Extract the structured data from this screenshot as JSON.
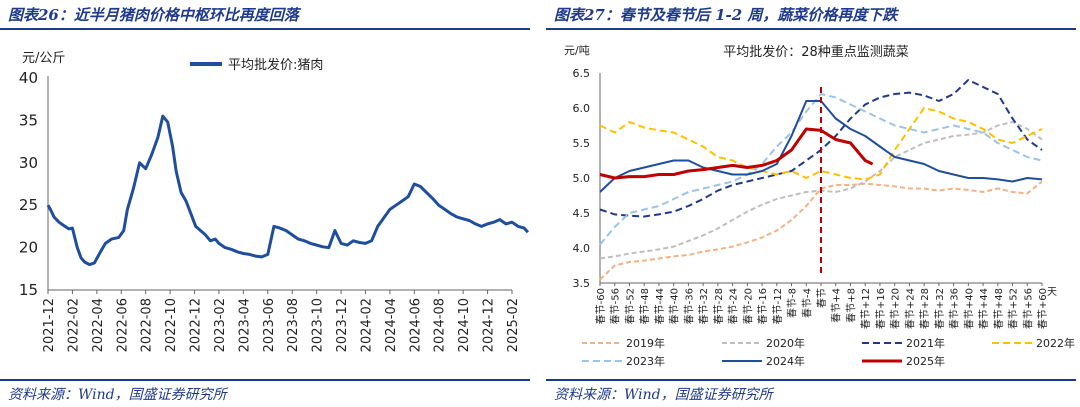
{
  "left": {
    "title": "图表26：近半月猪肉价格中枢环比再度回落",
    "source": "资料来源：Wind，国盛证券研究所"
  },
  "right": {
    "title": "图表27：春节及春节后 1-2 周，蔬菜价格再度下跌",
    "source": "资料来源：Wind，国盛证券研究所"
  },
  "chart_data": [
    {
      "type": "line",
      "ylabel": "元/公斤",
      "ylim": [
        15,
        40
      ],
      "yticks": [
        "15",
        "20",
        "25",
        "30",
        "35",
        "40"
      ],
      "xticks": [
        "2021-12",
        "2022-02",
        "2022-04",
        "2022-06",
        "2022-08",
        "2022-10",
        "2022-12",
        "2023-02",
        "2023-04",
        "2023-06",
        "2023-08",
        "2023-10",
        "2023-12",
        "2024-02",
        "2024-04",
        "2024-06",
        "2024-08",
        "2024-10",
        "2024-12",
        "2025-02"
      ],
      "legend_position": "top-center",
      "series": [
        {
          "name": "平均批发价:猪肉",
          "color": "#1f4e9c",
          "x": [
            0,
            0.2,
            0.5,
            0.9,
            1.3,
            1.7,
            2.0,
            2.4,
            2.7,
            3.0,
            3.4,
            3.8,
            4.3,
            4.7,
            5.2,
            5.8,
            6.2,
            6.5,
            7.0,
            7.5,
            8.0,
            8.5,
            9.0,
            9.4,
            9.8,
            10.2,
            10.5,
            10.9,
            11.3,
            11.7,
            12.1,
            12.5,
            12.9,
            13.3,
            13.7,
            14.0,
            14.5,
            15.0,
            15.5,
            16.0,
            16.5,
            17.0,
            17.5,
            18.0,
            18.5,
            19.0,
            19.5,
            20.0,
            20.5,
            21.0,
            21.5,
            22.0,
            22.5,
            23.0,
            23.5,
            24.0,
            24.5,
            25.0,
            25.5,
            26.0,
            26.5,
            27.0,
            27.5,
            28.0,
            28.5,
            29.0,
            29.5,
            30.0,
            30.5,
            31.0,
            31.5,
            32.0,
            32.5,
            33.0,
            33.5,
            34.0,
            34.5,
            35.0,
            35.5,
            36.0,
            36.5,
            37.0,
            37.5,
            38.0,
            38.5,
            39.0,
            39.3
          ],
          "values": [
            25.0,
            24.5,
            23.6,
            23.0,
            22.6,
            22.2,
            22.3,
            20.0,
            18.8,
            18.3,
            18.0,
            18.2,
            19.5,
            20.5,
            21.0,
            21.2,
            22.0,
            24.5,
            27.0,
            30.0,
            29.3,
            31.0,
            33.0,
            35.5,
            34.8,
            32.0,
            29.0,
            26.5,
            25.5,
            24.0,
            22.5,
            22.0,
            21.5,
            20.8,
            21.0,
            20.5,
            20.0,
            19.8,
            19.5,
            19.3,
            19.2,
            19.0,
            18.9,
            19.2,
            22.5,
            22.3,
            22.0,
            21.5,
            21.0,
            20.8,
            20.5,
            20.3,
            20.1,
            20.0,
            22.0,
            20.5,
            20.3,
            20.8,
            20.6,
            20.5,
            20.8,
            22.5,
            23.5,
            24.5,
            25.0,
            25.5,
            26.0,
            27.5,
            27.2,
            26.5,
            25.8,
            25.0,
            24.5,
            24.0,
            23.6,
            23.4,
            23.2,
            22.8,
            22.5,
            22.8,
            23.0,
            23.3,
            22.8,
            23.0,
            22.5,
            22.3,
            21.8
          ]
        }
      ]
    },
    {
      "type": "line",
      "title": "平均批发价：28种重点监测蔬菜",
      "ylabel": "元/吨",
      "ylim": [
        3.5,
        6.5
      ],
      "yticks": [
        "3.5",
        "4.0",
        "4.5",
        "5.0",
        "5.5",
        "6.0",
        "6.5"
      ],
      "xticks": [
        "春节-60",
        "春节-56",
        "春节-52",
        "春节-48",
        "春节-44",
        "春节-40",
        "春节-36",
        "春节-32",
        "春节-28",
        "春节-24",
        "春节-20",
        "春节-16",
        "春节-12",
        "春节-8",
        "春节-4",
        "春节",
        "春节+4",
        "春节+8",
        "春节+12",
        "春节+16",
        "春节+20",
        "春节+24",
        "春节+28",
        "春节+32",
        "春节+36",
        "春节+40",
        "春节+44",
        "春节+48",
        "春节+52",
        "春节+56",
        "春节+60"
      ],
      "xunit": "天",
      "legend_position": "bottom",
      "reference_line": {
        "x": 0,
        "color": "#c00000",
        "style": "dashed"
      },
      "series": [
        {
          "name": "2019年",
          "color": "#f4b183",
          "dash": "5,3",
          "x": [
            -60,
            -56,
            -52,
            -48,
            -44,
            -40,
            -36,
            -32,
            -28,
            -24,
            -20,
            -16,
            -12,
            -8,
            -4,
            0,
            4,
            8,
            12,
            16,
            20,
            24,
            28,
            32,
            36,
            40,
            44,
            48,
            52,
            56,
            60
          ],
          "values": [
            3.55,
            3.75,
            3.8,
            3.82,
            3.85,
            3.88,
            3.9,
            3.95,
            3.98,
            4.02,
            4.08,
            4.15,
            4.25,
            4.4,
            4.6,
            4.85,
            4.9,
            4.9,
            4.92,
            4.9,
            4.88,
            4.85,
            4.85,
            4.82,
            4.85,
            4.83,
            4.8,
            4.85,
            4.8,
            4.78,
            4.95
          ]
        },
        {
          "name": "2020年",
          "color": "#bfbfbf",
          "dash": "5,3",
          "x": [
            -60,
            -56,
            -52,
            -48,
            -44,
            -40,
            -36,
            -32,
            -28,
            -24,
            -20,
            -16,
            -12,
            -8,
            -4,
            0,
            4,
            8,
            12,
            16,
            20,
            24,
            28,
            32,
            36,
            40,
            44,
            48,
            52,
            56,
            60
          ],
          "values": [
            3.85,
            3.88,
            3.92,
            3.95,
            3.98,
            4.02,
            4.1,
            4.18,
            4.28,
            4.4,
            4.52,
            4.62,
            4.7,
            4.75,
            4.8,
            4.82,
            4.8,
            4.85,
            4.95,
            5.1,
            5.3,
            5.4,
            5.5,
            5.55,
            5.6,
            5.62,
            5.65,
            5.75,
            5.8,
            5.7,
            5.55
          ]
        },
        {
          "name": "2021年",
          "color": "#1f3a8a",
          "dash": "7,4",
          "x": [
            -60,
            -56,
            -52,
            -48,
            -44,
            -40,
            -36,
            -32,
            -28,
            -24,
            -20,
            -16,
            -12,
            -8,
            -4,
            0,
            4,
            8,
            12,
            16,
            20,
            24,
            28,
            32,
            36,
            40,
            44,
            48,
            52,
            56,
            60
          ],
          "values": [
            4.55,
            4.48,
            4.46,
            4.45,
            4.48,
            4.52,
            4.6,
            4.7,
            4.82,
            4.9,
            4.95,
            5.0,
            5.05,
            5.1,
            5.25,
            5.4,
            5.6,
            5.85,
            6.05,
            6.15,
            6.2,
            6.22,
            6.18,
            6.1,
            6.2,
            6.4,
            6.3,
            6.2,
            5.85,
            5.55,
            5.4
          ]
        },
        {
          "name": "2022年",
          "color": "#ffc000",
          "dash": "7,4",
          "x": [
            -60,
            -56,
            -52,
            -48,
            -44,
            -40,
            -36,
            -32,
            -28,
            -24,
            -20,
            -16,
            -12,
            -8,
            -4,
            0,
            4,
            8,
            12,
            16,
            20,
            24,
            28,
            32,
            36,
            40,
            44,
            48,
            52,
            56,
            60
          ],
          "values": [
            5.75,
            5.65,
            5.8,
            5.72,
            5.68,
            5.65,
            5.55,
            5.45,
            5.3,
            5.25,
            5.15,
            5.1,
            5.05,
            5.1,
            5.0,
            5.1,
            5.05,
            5.0,
            4.98,
            5.05,
            5.4,
            5.7,
            6.0,
            5.95,
            5.85,
            5.8,
            5.7,
            5.55,
            5.5,
            5.6,
            5.7
          ]
        },
        {
          "name": "2023年",
          "color": "#9dc3e6",
          "dash": "7,4",
          "x": [
            -60,
            -56,
            -52,
            -48,
            -44,
            -40,
            -36,
            -32,
            -28,
            -24,
            -20,
            -16,
            -12,
            -8,
            -4,
            0,
            4,
            8,
            12,
            16,
            20,
            24,
            28,
            32,
            36,
            40,
            44,
            48,
            52,
            56,
            60
          ],
          "values": [
            4.05,
            4.3,
            4.5,
            4.55,
            4.6,
            4.7,
            4.8,
            4.85,
            4.9,
            4.95,
            5.05,
            5.2,
            5.45,
            5.65,
            5.95,
            6.2,
            6.15,
            6.05,
            5.95,
            5.85,
            5.75,
            5.7,
            5.65,
            5.7,
            5.75,
            5.7,
            5.65,
            5.5,
            5.4,
            5.3,
            5.25
          ]
        },
        {
          "name": "2024年",
          "color": "#1f4e9c",
          "dash": "",
          "x": [
            -60,
            -56,
            -52,
            -48,
            -44,
            -40,
            -36,
            -32,
            -28,
            -24,
            -20,
            -16,
            -12,
            -8,
            -4,
            0,
            4,
            8,
            12,
            16,
            20,
            24,
            28,
            32,
            36,
            40,
            44,
            48,
            52,
            56,
            60
          ],
          "values": [
            4.8,
            5.0,
            5.1,
            5.15,
            5.2,
            5.25,
            5.25,
            5.15,
            5.1,
            5.05,
            5.05,
            5.1,
            5.2,
            5.6,
            6.1,
            6.1,
            5.85,
            5.7,
            5.6,
            5.45,
            5.3,
            5.25,
            5.2,
            5.1,
            5.05,
            5.0,
            5.0,
            4.98,
            4.95,
            5.0,
            4.98
          ]
        },
        {
          "name": "2025年",
          "color": "#c00000",
          "dash": "",
          "x": [
            -60,
            -56,
            -52,
            -48,
            -44,
            -40,
            -36,
            -32,
            -28,
            -24,
            -20,
            -16,
            -12,
            -8,
            -4,
            0,
            4,
            8,
            12,
            14
          ],
          "values": [
            5.05,
            5.0,
            5.02,
            5.02,
            5.05,
            5.05,
            5.1,
            5.12,
            5.15,
            5.18,
            5.15,
            5.18,
            5.25,
            5.4,
            5.7,
            5.68,
            5.55,
            5.5,
            5.25,
            5.2
          ]
        }
      ]
    }
  ]
}
